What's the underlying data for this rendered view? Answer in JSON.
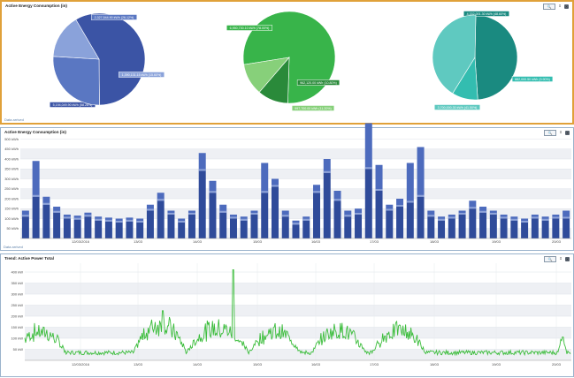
{
  "panel1": {
    "title": "Active Energy Consumption (in)",
    "zoom_label": "🔍",
    "pin_label": "⇕",
    "close_label": "✕",
    "status": "Data arrived",
    "pies": [
      {
        "slices": [
          {
            "value": 5194049,
            "label": "5,194,049.90 kWh (58.28%)",
            "color": "#3b54a5"
          },
          {
            "value": 2327544,
            "label": "2,327,544.90 kWh (26.12%)",
            "color": "#5a77c2"
          },
          {
            "value": 1390131,
            "label": "1,390,131.15 kWh (15.60%)",
            "color": "#8aa2da"
          }
        ]
      },
      {
        "slices": [
          {
            "value": 6950730,
            "label": "6,950,730.10 kWh (78.00%)",
            "color": "#38b44a"
          },
          {
            "value": 962120,
            "label": "962,120.00 kWh (10.80%)",
            "color": "#2a8a3a"
          },
          {
            "value": 997700,
            "label": "997,700.00 kWh (11.20%)",
            "color": "#87d07a"
          }
        ]
      },
      {
        "slices": [
          {
            "value": 4332000,
            "label": "4,332,001.30 kWh (48.60%)",
            "color": "#1a8a80"
          },
          {
            "value": 882000,
            "label": "882,000.50 kWh (9.90%)",
            "color": "#33bdb0"
          },
          {
            "value": 3700000,
            "label": "3,700,000.30 kWh (41.50%)",
            "color": "#5fc9c0"
          }
        ]
      }
    ]
  },
  "panel2": {
    "title": "Active Energy Consumption (in)",
    "zoom_label": "🔍",
    "pin_label": "⇕",
    "close_label": "✕",
    "status": "Data arrived"
  },
  "panel3": {
    "title": "Trend: Active Power Total",
    "zoom_label": "🔍",
    "pin_label": "⇕",
    "close_label": "✕"
  },
  "chart_data": [
    {
      "type": "pie",
      "values": [
        5194049,
        2327544,
        1390131
      ],
      "labels": [
        "5,194,049.90 kWh (58.28%)",
        "2,327,544.90 kWh (26.12%)",
        "1,390,131.15 kWh (15.60%)"
      ]
    },
    {
      "type": "pie",
      "values": [
        6950730,
        962120,
        997700
      ],
      "labels": [
        "6,950,730.10 kWh (78.00%)",
        "962,120.00 kWh (10.80%)",
        "997,700.00 kWh (11.20%)"
      ]
    },
    {
      "type": "pie",
      "values": [
        4332000,
        882000,
        3700000
      ],
      "labels": [
        "4,332,001.30 kWh (48.60%)",
        "882,000.50 kWh (9.90%)",
        "3,700,000.30 kWh (41.50%)"
      ]
    },
    {
      "type": "bar",
      "title": "Active Energy Consumption (in)",
      "yticks": [
        "50 kWh",
        "100 kWh",
        "150 kWh",
        "200 kWh",
        "250 kWh",
        "300 kWh",
        "350 kWh",
        "400 kWh",
        "450 kWh",
        "500 kWh"
      ],
      "ylim": [
        0,
        520
      ],
      "xticks": [
        "12/03/2016",
        "13/03",
        "14/03",
        "15/03",
        "16/03",
        "17/03",
        "18/03",
        "19/03",
        "20/03"
      ],
      "series": [
        {
          "values": [
            110,
            210,
            170,
            130,
            100,
            95,
            110,
            90,
            85,
            80,
            85,
            80,
            140,
            190,
            120,
            80,
            120,
            340,
            230,
            130,
            100,
            90,
            120,
            230,
            260,
            110,
            70,
            90,
            230,
            330,
            190,
            110,
            120,
            350,
            240,
            140,
            160,
            180,
            210,
            110,
            90,
            100,
            120,
            150,
            130,
            120,
            100,
            90,
            80,
            100,
            90,
            100,
            100
          ]
        },
        {
          "values": [
            30,
            180,
            40,
            30,
            20,
            20,
            20,
            20,
            20,
            20,
            20,
            20,
            30,
            40,
            20,
            20,
            20,
            90,
            60,
            40,
            20,
            20,
            20,
            150,
            40,
            30,
            20,
            20,
            40,
            70,
            50,
            30,
            30,
            230,
            130,
            30,
            40,
            200,
            250,
            30,
            20,
            20,
            20,
            40,
            30,
            20,
            20,
            20,
            20,
            20,
            20,
            20,
            40
          ]
        }
      ]
    },
    {
      "type": "line",
      "title": "Trend: Active Power Total",
      "yticks": [
        "50 kW",
        "100 kW",
        "150 kW",
        "200 kW",
        "250 kW",
        "300 kW",
        "350 kW",
        "400 kW"
      ],
      "ylim": [
        0,
        440
      ],
      "xticks": [
        "12/03/2016",
        "13/03",
        "14/03",
        "15/03",
        "16/03",
        "17/03",
        "18/03",
        "19/03",
        "20/03"
      ],
      "color": "#3cbd3c"
    }
  ]
}
